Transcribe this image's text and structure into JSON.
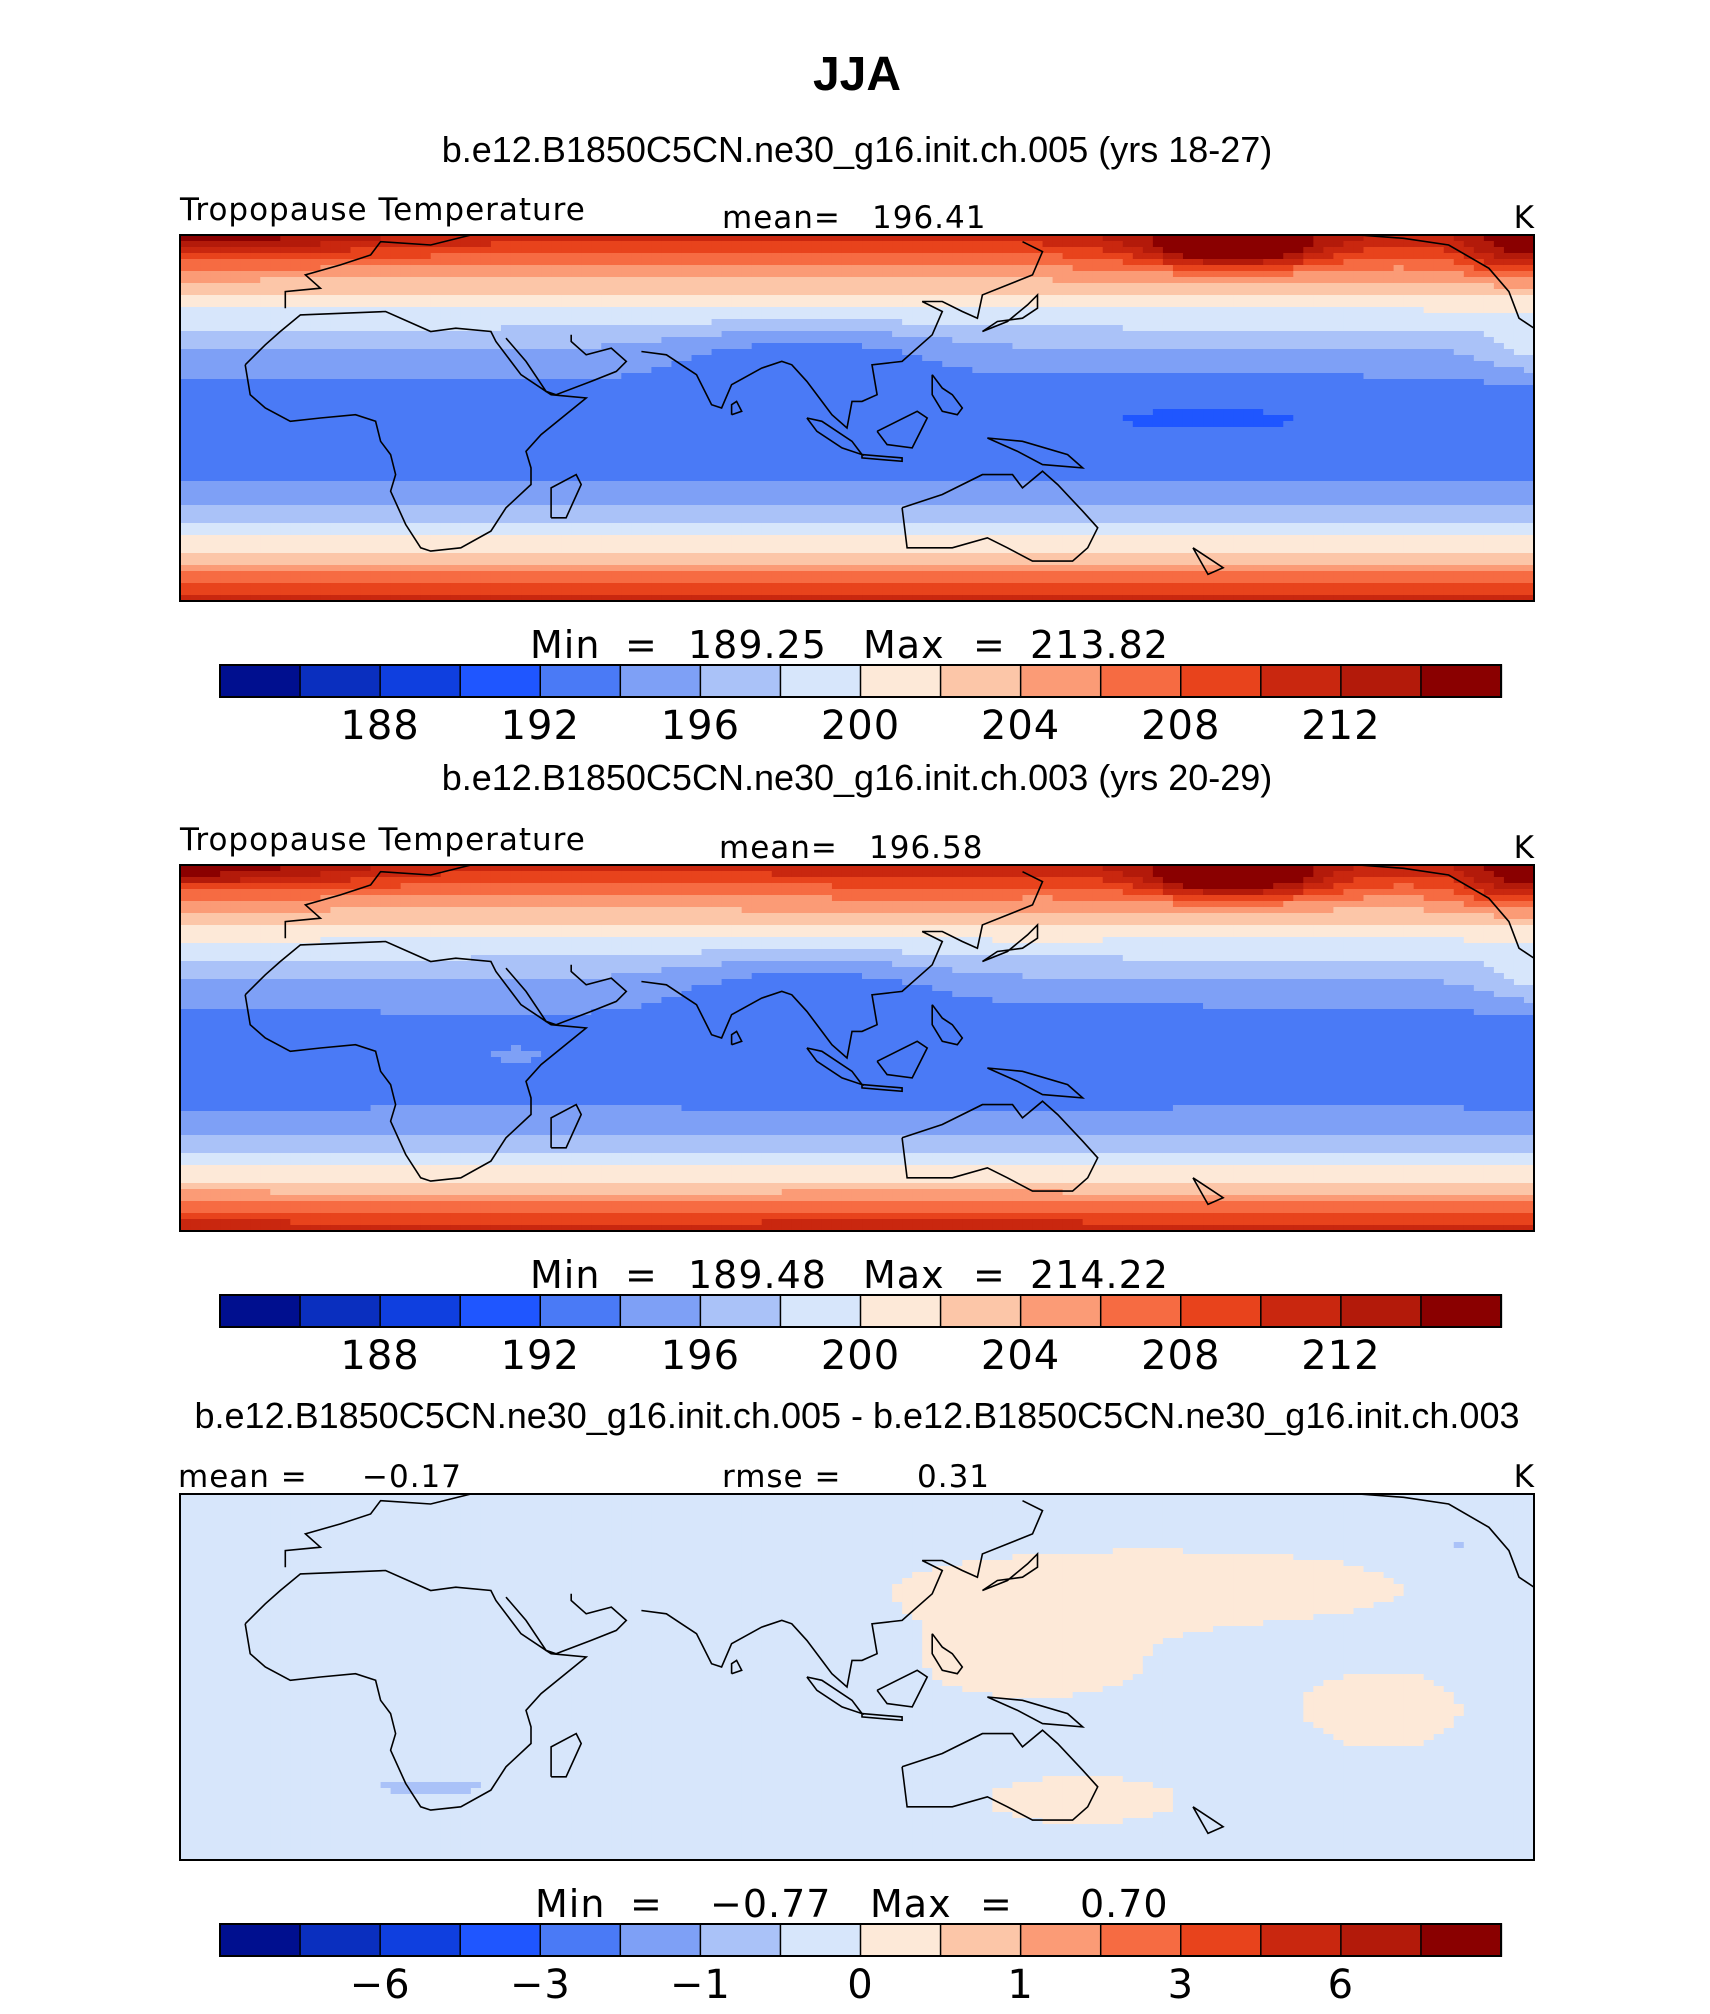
{
  "colors": {
    "palette": [
      "#000f8f",
      "#0a2fbf",
      "#0f3fdf",
      "#1f56ff",
      "#4a7af6",
      "#7ea0f6",
      "#aac2f8",
      "#d7e6fb",
      "#fde9d8",
      "#fcc6a8",
      "#fb9b76",
      "#f66b42",
      "#e8431c",
      "#c9270f",
      "#b31a0a",
      "#8a0000"
    ]
  },
  "chart_data": {
    "type": "heatmap",
    "title": "JJA",
    "panels": [
      {
        "title": "b.e12.B1850C5CN.ne30_g16.init.ch.005 (yrs 18-27)",
        "variable": "Tropopause Temperature",
        "units": "K",
        "mean_label": "mean=",
        "mean": "196.41",
        "min_label": "Min",
        "min": "189.25",
        "max_label": "Max",
        "max": "213.82",
        "colorbar_ticks": [
          "188",
          "192",
          "196",
          "200",
          "204",
          "208",
          "212"
        ],
        "field": "ch005"
      },
      {
        "title": "b.e12.B1850C5CN.ne30_g16.init.ch.003 (yrs 20-29)",
        "variable": "Tropopause Temperature",
        "units": "K",
        "mean_label": "mean=",
        "mean": "196.58",
        "min_label": "Min",
        "min": "189.48",
        "max_label": "Max",
        "max": "214.22",
        "colorbar_ticks": [
          "188",
          "192",
          "196",
          "200",
          "204",
          "208",
          "212"
        ],
        "field": "ch003"
      },
      {
        "title": "b.e12.B1850C5CN.ne30_g16.init.ch.005 - b.e12.B1850C5CN.ne30_g16.init.ch.003",
        "variable": "",
        "units": "K",
        "mean_label": "mean =",
        "mean": "−0.17",
        "rmse_label": "rmse =",
        "rmse": "0.31",
        "min_label": "Min",
        "min": "−0.77",
        "max_label": "Max",
        "max": "0.70",
        "colorbar_ticks": [
          "−6",
          "−3",
          "−1",
          "0",
          "1",
          "3",
          "6"
        ],
        "field": "diff"
      }
    ]
  }
}
